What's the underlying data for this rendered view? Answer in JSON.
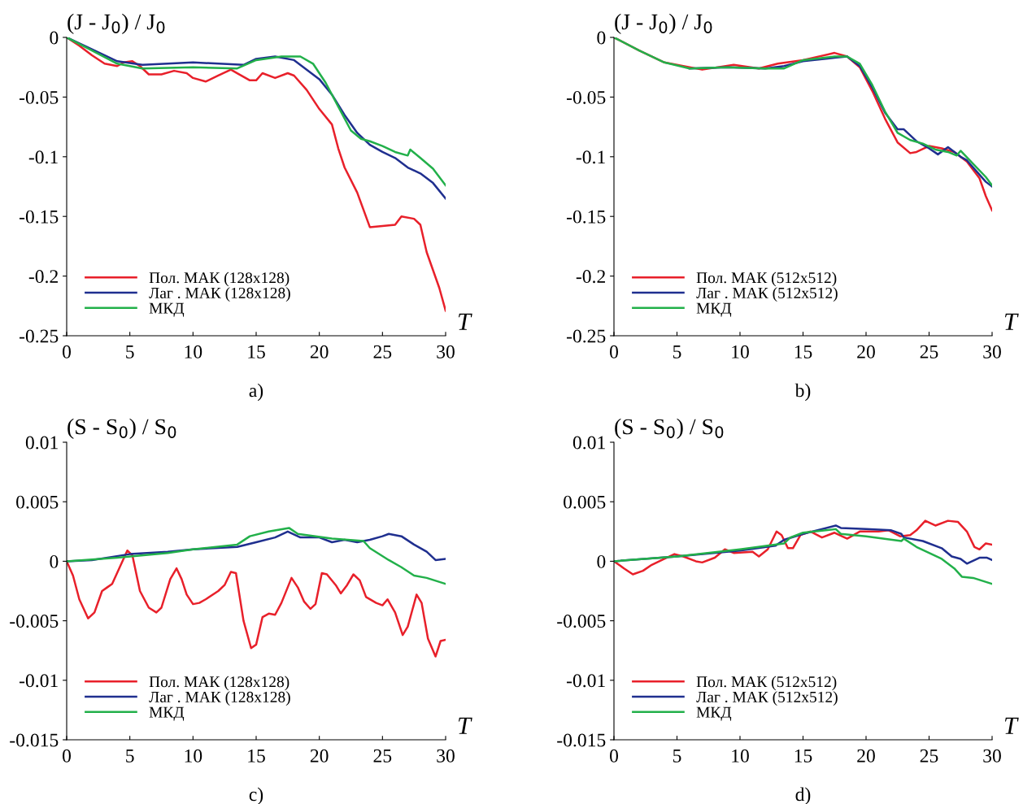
{
  "chart_data": [
    {
      "type": "line",
      "ylabel": "(J - J$_{0}$) / J$_{0}$",
      "xlabel": "T",
      "annotations": [
        "a)"
      ],
      "xlim": [
        0,
        30
      ],
      "ylim": [
        -0.25,
        0
      ],
      "xticks": [
        0,
        5,
        10,
        15,
        20,
        25,
        30
      ],
      "yticks": [
        0,
        -0.05,
        -0.1,
        -0.15,
        -0.2,
        -0.25
      ],
      "legend": "bottom left",
      "series": [
        {
          "name": "Пол. МАК (128x128)",
          "color": "#e8202a",
          "x": [
            0,
            1,
            2,
            3,
            4,
            4.5,
            5.2,
            5.8,
            6.5,
            7.5,
            8.5,
            9.5,
            10,
            11,
            12,
            13,
            13.5,
            14.5,
            15,
            15.5,
            16.5,
            17.5,
            18,
            19,
            20,
            21,
            21.5,
            22,
            23,
            24,
            25,
            26,
            26.5,
            27.5,
            28,
            28.5,
            29,
            29.5,
            30
          ],
          "values": [
            0,
            -0.007,
            -0.015,
            -0.022,
            -0.024,
            -0.021,
            -0.02,
            -0.024,
            -0.031,
            -0.031,
            -0.028,
            -0.03,
            -0.034,
            -0.037,
            -0.032,
            -0.027,
            -0.03,
            -0.036,
            -0.036,
            -0.03,
            -0.034,
            -0.03,
            -0.032,
            -0.044,
            -0.06,
            -0.073,
            -0.093,
            -0.109,
            -0.13,
            -0.159,
            -0.158,
            -0.157,
            -0.15,
            -0.152,
            -0.157,
            -0.18,
            -0.195,
            -0.21,
            -0.229
          ]
        },
        {
          "name": "Лаг . МАК (128x128)",
          "color": "#1f2f8f",
          "x": [
            0,
            2,
            4,
            6,
            10,
            14,
            15,
            16.5,
            18,
            19,
            20,
            21,
            22,
            23,
            24,
            25,
            26,
            27,
            28,
            29,
            30
          ],
          "values": [
            0,
            -0.01,
            -0.02,
            -0.023,
            -0.021,
            -0.023,
            -0.018,
            -0.016,
            -0.019,
            -0.027,
            -0.035,
            -0.048,
            -0.065,
            -0.08,
            -0.09,
            -0.096,
            -0.101,
            -0.109,
            -0.114,
            -0.122,
            -0.135
          ]
        },
        {
          "name": "МКД",
          "color": "#22b04a",
          "x": [
            0,
            2,
            4,
            6,
            10,
            13.5,
            15,
            17,
            18.5,
            19.5,
            20.5,
            21.5,
            22.5,
            23.3,
            24,
            25,
            26,
            27,
            27.2,
            28,
            29,
            30
          ],
          "values": [
            0,
            -0.011,
            -0.022,
            -0.026,
            -0.025,
            -0.026,
            -0.019,
            -0.016,
            -0.016,
            -0.022,
            -0.038,
            -0.058,
            -0.078,
            -0.085,
            -0.087,
            -0.091,
            -0.096,
            -0.099,
            -0.094,
            -0.101,
            -0.11,
            -0.124
          ]
        }
      ]
    },
    {
      "type": "line",
      "ylabel": "(J - J$_{0}$) / J$_{0}$",
      "xlabel": "T",
      "annotations": [
        "b)"
      ],
      "xlim": [
        0,
        30
      ],
      "ylim": [
        -0.25,
        0
      ],
      "xticks": [
        0,
        5,
        10,
        15,
        20,
        25,
        30
      ],
      "yticks": [
        0,
        -0.05,
        -0.1,
        -0.15,
        -0.2,
        -0.25
      ],
      "legend": "bottom left",
      "series": [
        {
          "name": "Пол. МАК (512x512)",
          "color": "#e8202a",
          "x": [
            0,
            2,
            4,
            7,
            9.5,
            11.5,
            13,
            15,
            17.5,
            18.5,
            19.5,
            20.5,
            21.5,
            22.5,
            23.5,
            24,
            25,
            26,
            27,
            28,
            29,
            29.5,
            30
          ],
          "values": [
            0,
            -0.011,
            -0.021,
            -0.027,
            -0.023,
            -0.026,
            -0.022,
            -0.019,
            -0.013,
            -0.016,
            -0.025,
            -0.045,
            -0.068,
            -0.088,
            -0.097,
            -0.096,
            -0.091,
            -0.093,
            -0.096,
            -0.104,
            -0.118,
            -0.133,
            -0.145
          ]
        },
        {
          "name": "Лаг . МАК (512x512)",
          "color": "#1f2f8f",
          "x": [
            6,
            9,
            12,
            13.5,
            15,
            17.5,
            18.5,
            19.5,
            20.5,
            21.5,
            22.5,
            23,
            24,
            25,
            25.7,
            26.5,
            27.5,
            28,
            29,
            29.5,
            30
          ],
          "values": [
            -0.026,
            -0.025,
            -0.026,
            -0.024,
            -0.02,
            -0.017,
            -0.016,
            -0.024,
            -0.042,
            -0.063,
            -0.077,
            -0.077,
            -0.087,
            -0.093,
            -0.098,
            -0.092,
            -0.1,
            -0.103,
            -0.115,
            -0.121,
            -0.125
          ]
        },
        {
          "name": "МКД",
          "color": "#22b04a",
          "x": [
            0,
            2,
            4,
            6,
            9,
            12,
            13.5,
            15,
            17.5,
            18.5,
            19.5,
            20.5,
            21.5,
            22.5,
            23.5,
            24.5,
            25.5,
            26.5,
            27.2,
            27.5,
            28.5,
            29.5,
            30
          ],
          "values": [
            0,
            -0.011,
            -0.021,
            -0.026,
            -0.025,
            -0.026,
            -0.026,
            -0.019,
            -0.016,
            -0.016,
            -0.022,
            -0.04,
            -0.062,
            -0.08,
            -0.086,
            -0.089,
            -0.094,
            -0.096,
            -0.099,
            -0.095,
            -0.106,
            -0.117,
            -0.124
          ]
        }
      ]
    },
    {
      "type": "line",
      "ylabel": "(S - S$_{0}$) / S$_{0}$",
      "xlabel": "T",
      "annotations": [
        "c)"
      ],
      "xlim": [
        0,
        30
      ],
      "ylim": [
        -0.015,
        0.01
      ],
      "xticks": [
        0,
        5,
        10,
        15,
        20,
        25,
        30
      ],
      "yticks": [
        0.01,
        0.005,
        0,
        -0.005,
        -0.01,
        -0.015
      ],
      "legend": "bottom left",
      "series": [
        {
          "name": "Пол. МАК (128x128)",
          "color": "#e8202a",
          "x": [
            0,
            0.5,
            1,
            1.7,
            2.2,
            2.8,
            3.2,
            3.6,
            4.2,
            4.8,
            5.2,
            5.8,
            6.5,
            7.1,
            7.5,
            8.2,
            8.7,
            9.1,
            9.5,
            10,
            10.5,
            11,
            12,
            12.5,
            13,
            13.4,
            14,
            14.6,
            15,
            15.5,
            16,
            16.5,
            17,
            17.8,
            18.3,
            18.8,
            19.3,
            19.7,
            20.2,
            20.6,
            21.3,
            21.7,
            22.2,
            22.7,
            23.2,
            23.7,
            24.5,
            25,
            25.4,
            26,
            26.6,
            27,
            27.7,
            28.1,
            28.6,
            29.2,
            29.6,
            30
          ],
          "values": [
            0,
            -0.0012,
            -0.0032,
            -0.0048,
            -0.0043,
            -0.0025,
            -0.0022,
            -0.0019,
            -0.0005,
            0.0009,
            0.0005,
            -0.0025,
            -0.0039,
            -0.0043,
            -0.0039,
            -0.0015,
            -0.0006,
            -0.0015,
            -0.0028,
            -0.0036,
            -0.0035,
            -0.0032,
            -0.0025,
            -0.002,
            -0.0009,
            -0.001,
            -0.005,
            -0.0073,
            -0.007,
            -0.0047,
            -0.0044,
            -0.0045,
            -0.0035,
            -0.0014,
            -0.0022,
            -0.0034,
            -0.004,
            -0.0036,
            -0.001,
            -0.0011,
            -0.002,
            -0.0027,
            -0.002,
            -0.0011,
            -0.0016,
            -0.003,
            -0.0035,
            -0.0037,
            -0.0032,
            -0.0043,
            -0.0062,
            -0.0055,
            -0.0028,
            -0.0035,
            -0.0065,
            -0.008,
            -0.0067,
            -0.0066
          ]
        },
        {
          "name": "Лаг . МАК (128x128)",
          "color": "#1f2f8f",
          "x": [
            0,
            2,
            5,
            8,
            10,
            13.5,
            15,
            16.5,
            17.5,
            18.5,
            20,
            21,
            22,
            23,
            24,
            25,
            25.5,
            26.5,
            27.5,
            28.5,
            29.2,
            30
          ],
          "values": [
            0,
            0.0001,
            0.0006,
            0.0008,
            0.001,
            0.0012,
            0.0016,
            0.002,
            0.0025,
            0.002,
            0.002,
            0.0016,
            0.0018,
            0.0016,
            0.0018,
            0.0021,
            0.0023,
            0.0021,
            0.0014,
            0.0008,
            0.0001,
            0.0002
          ]
        },
        {
          "name": "МКД",
          "color": "#22b04a",
          "x": [
            0,
            4,
            8,
            10,
            13.5,
            14.5,
            16,
            17.6,
            18.3,
            21,
            23.5,
            24,
            25.5,
            26.5,
            27.5,
            28.5,
            30
          ],
          "values": [
            0,
            0.0003,
            0.0007,
            0.001,
            0.0014,
            0.0021,
            0.0025,
            0.0028,
            0.0023,
            0.0019,
            0.0017,
            0.0011,
            0.0001,
            -0.0005,
            -0.0012,
            -0.0014,
            -0.0019
          ]
        }
      ]
    },
    {
      "type": "line",
      "ylabel": "(S - S$_{0}$) / S$_{0}$",
      "xlabel": "T",
      "annotations": [
        "d)"
      ],
      "xlim": [
        0,
        30
      ],
      "ylim": [
        -0.015,
        0.01
      ],
      "xticks": [
        0,
        5,
        10,
        15,
        20,
        25,
        30
      ],
      "yticks": [
        0.01,
        0.005,
        0,
        -0.005,
        -0.01,
        -0.015
      ],
      "legend": "bottom left",
      "series": [
        {
          "name": "Пол. МАК (512x512)",
          "color": "#e8202a",
          "x": [
            0,
            0.8,
            1.5,
            2.3,
            3,
            4,
            4.8,
            5.5,
            6.5,
            7,
            8,
            8.8,
            9.5,
            11,
            11.5,
            12.2,
            12.9,
            13.3,
            13.8,
            14.2,
            14.8,
            15.6,
            16.5,
            17.5,
            18.5,
            19.5,
            21,
            21.8,
            22.7,
            23.5,
            24,
            24.7,
            25.5,
            26.5,
            27.3,
            28,
            28.6,
            29,
            29.5,
            30
          ],
          "values": [
            0,
            -0.0006,
            -0.0011,
            -0.0008,
            -0.0003,
            0.0002,
            0.0006,
            0.0004,
            0,
            -0.0001,
            0.0003,
            0.001,
            0.0007,
            0.0008,
            0.0004,
            0.001,
            0.0025,
            0.0022,
            0.0011,
            0.0011,
            0.0022,
            0.0025,
            0.002,
            0.0024,
            0.0019,
            0.0025,
            0.0025,
            0.0026,
            0.0021,
            0.0022,
            0.0026,
            0.0034,
            0.003,
            0.0034,
            0.0033,
            0.0025,
            0.0012,
            0.001,
            0.0015,
            0.0014
          ]
        },
        {
          "name": "Лаг . МАК (512x512)",
          "color": "#1f2f8f",
          "x": [
            0,
            5,
            10,
            12.8,
            13.5,
            15,
            17.6,
            18,
            20,
            22,
            22.8,
            23,
            24.5,
            26,
            26.8,
            27.5,
            28,
            29,
            29.6,
            30
          ],
          "values": [
            0,
            0.0004,
            0.0009,
            0.0013,
            0.0018,
            0.0023,
            0.003,
            0.0028,
            0.0027,
            0.0026,
            0.0023,
            0.002,
            0.0017,
            0.0011,
            0.0004,
            0.0002,
            -0.0002,
            0.0003,
            0.0003,
            0.0001
          ]
        },
        {
          "name": "МКД",
          "color": "#22b04a",
          "x": [
            0,
            5,
            10,
            13.5,
            14,
            15,
            17.6,
            18,
            20,
            22.8,
            23,
            24,
            26,
            27,
            27.6,
            28.5,
            30
          ],
          "values": [
            0,
            0.0004,
            0.001,
            0.0015,
            0.002,
            0.0024,
            0.0027,
            0.0023,
            0.0021,
            0.0017,
            0.0019,
            0.0012,
            0.0002,
            -0.0006,
            -0.0013,
            -0.0014,
            -0.0019
          ]
        }
      ]
    }
  ]
}
